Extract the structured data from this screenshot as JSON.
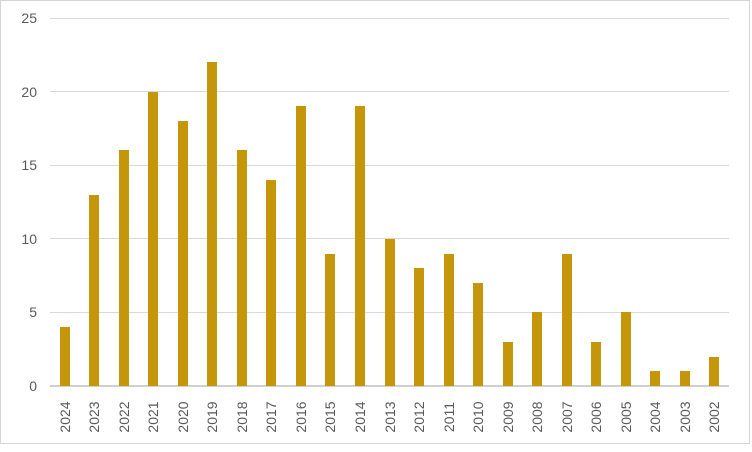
{
  "chart_data": {
    "type": "bar",
    "title": "",
    "xlabel": "",
    "ylabel": "",
    "categories": [
      "2024",
      "2023",
      "2022",
      "2021",
      "2020",
      "2019",
      "2018",
      "2017",
      "2016",
      "2015",
      "2014",
      "2013",
      "2012",
      "2011",
      "2010",
      "2009",
      "2008",
      "2007",
      "2006",
      "2005",
      "2004",
      "2003",
      "2002"
    ],
    "values": [
      4,
      13,
      16,
      20,
      18,
      22,
      16,
      14,
      19,
      9,
      19,
      10,
      8,
      9,
      7,
      3,
      5,
      9,
      3,
      5,
      1,
      1,
      2
    ],
    "ylim": [
      0,
      25
    ],
    "yticks": [
      0,
      5,
      10,
      15,
      20,
      25
    ],
    "grid": true,
    "legend_position": "none",
    "x_tick_rotation_degrees": 90,
    "colors": {
      "bar": "#C6960A",
      "gridline": "#D9D9D9",
      "axis_line": "#D0D0D0",
      "tick_text": "#595959",
      "frame_border": "#D5D5D5",
      "background": "#FFFFFF"
    }
  }
}
